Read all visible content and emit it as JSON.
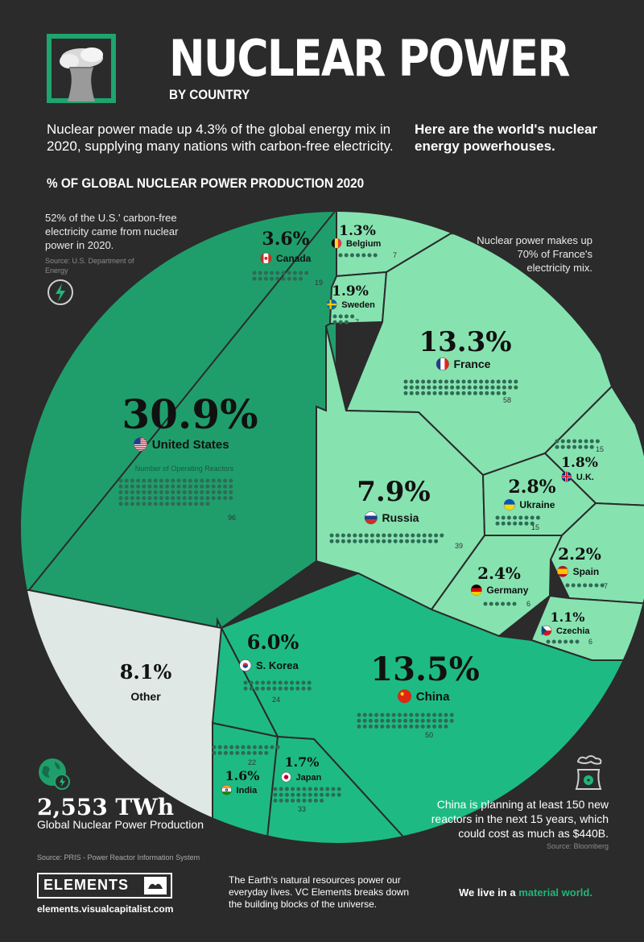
{
  "header": {
    "title": "NUCLEAR POWER",
    "subtitle": "BY COUNTRY",
    "intro": "Nuclear power made up 4.3% of the global energy mix in 2020, supplying many nations with carbon-free electricity.",
    "intro_right": "Here are the world's nuclear energy powerhouses.",
    "section_title": "% OF GLOBAL NUCLEAR POWER PRODUCTION 2020"
  },
  "notes": {
    "us_note": "52% of the U.S.' carbon-free electricity came from nuclear power in 2020.",
    "us_source": "Source: U.S. Department of Energy",
    "france_note": "Nuclear power makes up 70% of France's electricity mix.",
    "china_note": "China is planning at least 150 new reactors in the next 15 years, which could cost as much as $440B.",
    "china_source": "Source: Bloomberg",
    "reactors_legend": "Number of Operating Reactors"
  },
  "totals": {
    "value": "2,553 TWh",
    "label": "Global Nuclear Power Production"
  },
  "source": "Source: PRIS - Power Reactor Information System",
  "footer": {
    "brand": "ELEMENTS",
    "url": "elements.visualcapitalist.com",
    "blurb": "The Earth's natural resources power our everyday lives. VC Elements breaks down the building blocks of the universe.",
    "tagline_prefix": "We live in a ",
    "tagline_accent": "material world."
  },
  "colors": {
    "background": "#2b2b2b",
    "dark_green": "#1f9e6c",
    "mid_green": "#1dbb83",
    "light_green": "#86e3b0",
    "other_gray": "#dfe8e5",
    "accent": "#21b57c"
  },
  "chart_data": {
    "type": "voronoi-treemap",
    "title": "% OF GLOBAL NUCLEAR POWER PRODUCTION 2020",
    "unit": "%",
    "series": [
      {
        "name": "% of global nuclear power production",
        "values": [
          30.9,
          13.5,
          13.3,
          8.1,
          7.9,
          6.0,
          3.6,
          2.8,
          2.4,
          2.2,
          1.9,
          1.8,
          1.7,
          1.6,
          1.3,
          1.1
        ]
      },
      {
        "name": "Number of Operating Reactors",
        "values": [
          96,
          50,
          58,
          null,
          39,
          24,
          19,
          15,
          6,
          7,
          7,
          15,
          33,
          22,
          7,
          6
        ]
      }
    ],
    "categories": [
      "United States",
      "China",
      "France",
      "Other",
      "Russia",
      "S. Korea",
      "Canada",
      "Ukraine",
      "Germany",
      "Spain",
      "Sweden",
      "U.K.",
      "Japan",
      "India",
      "Belgium",
      "Czechia"
    ],
    "cells": [
      {
        "name": "United States",
        "pct": "30.9%",
        "value": 30.9,
        "reactors": 96,
        "flag": "us-flag-icon",
        "group": "dark"
      },
      {
        "name": "China",
        "pct": "13.5%",
        "value": 13.5,
        "reactors": 50,
        "flag": "china-flag-icon",
        "group": "mid"
      },
      {
        "name": "France",
        "pct": "13.3%",
        "value": 13.3,
        "reactors": 58,
        "flag": "france-flag-icon",
        "group": "light"
      },
      {
        "name": "Other",
        "pct": "8.1%",
        "value": 8.1,
        "reactors": null,
        "flag": "",
        "group": "other"
      },
      {
        "name": "Russia",
        "pct": "7.9%",
        "value": 7.9,
        "reactors": 39,
        "flag": "russia-flag-icon",
        "group": "light"
      },
      {
        "name": "S. Korea",
        "pct": "6.0%",
        "value": 6.0,
        "reactors": 24,
        "flag": "korea-flag-icon",
        "group": "mid"
      },
      {
        "name": "Canada",
        "pct": "3.6%",
        "value": 3.6,
        "reactors": 19,
        "flag": "canada-flag-icon",
        "group": "dark"
      },
      {
        "name": "Ukraine",
        "pct": "2.8%",
        "value": 2.8,
        "reactors": 15,
        "flag": "ukraine-flag-icon",
        "group": "light"
      },
      {
        "name": "Germany",
        "pct": "2.4%",
        "value": 2.4,
        "reactors": 6,
        "flag": "germany-flag-icon",
        "group": "light"
      },
      {
        "name": "Spain",
        "pct": "2.2%",
        "value": 2.2,
        "reactors": 7,
        "flag": "spain-flag-icon",
        "group": "light"
      },
      {
        "name": "Sweden",
        "pct": "1.9%",
        "value": 1.9,
        "reactors": 7,
        "flag": "sweden-flag-icon",
        "group": "light"
      },
      {
        "name": "U.K.",
        "pct": "1.8%",
        "value": 1.8,
        "reactors": 15,
        "flag": "uk-flag-icon",
        "group": "light"
      },
      {
        "name": "Japan",
        "pct": "1.7%",
        "value": 1.7,
        "reactors": 33,
        "flag": "japan-flag-icon",
        "group": "mid"
      },
      {
        "name": "India",
        "pct": "1.6%",
        "value": 1.6,
        "reactors": 22,
        "flag": "india-flag-icon",
        "group": "mid"
      },
      {
        "name": "Belgium",
        "pct": "1.3%",
        "value": 1.3,
        "reactors": 7,
        "flag": "belgium-flag-icon",
        "group": "light"
      },
      {
        "name": "Czechia",
        "pct": "1.1%",
        "value": 1.1,
        "reactors": 6,
        "flag": "czech-flag-icon",
        "group": "light"
      }
    ]
  }
}
